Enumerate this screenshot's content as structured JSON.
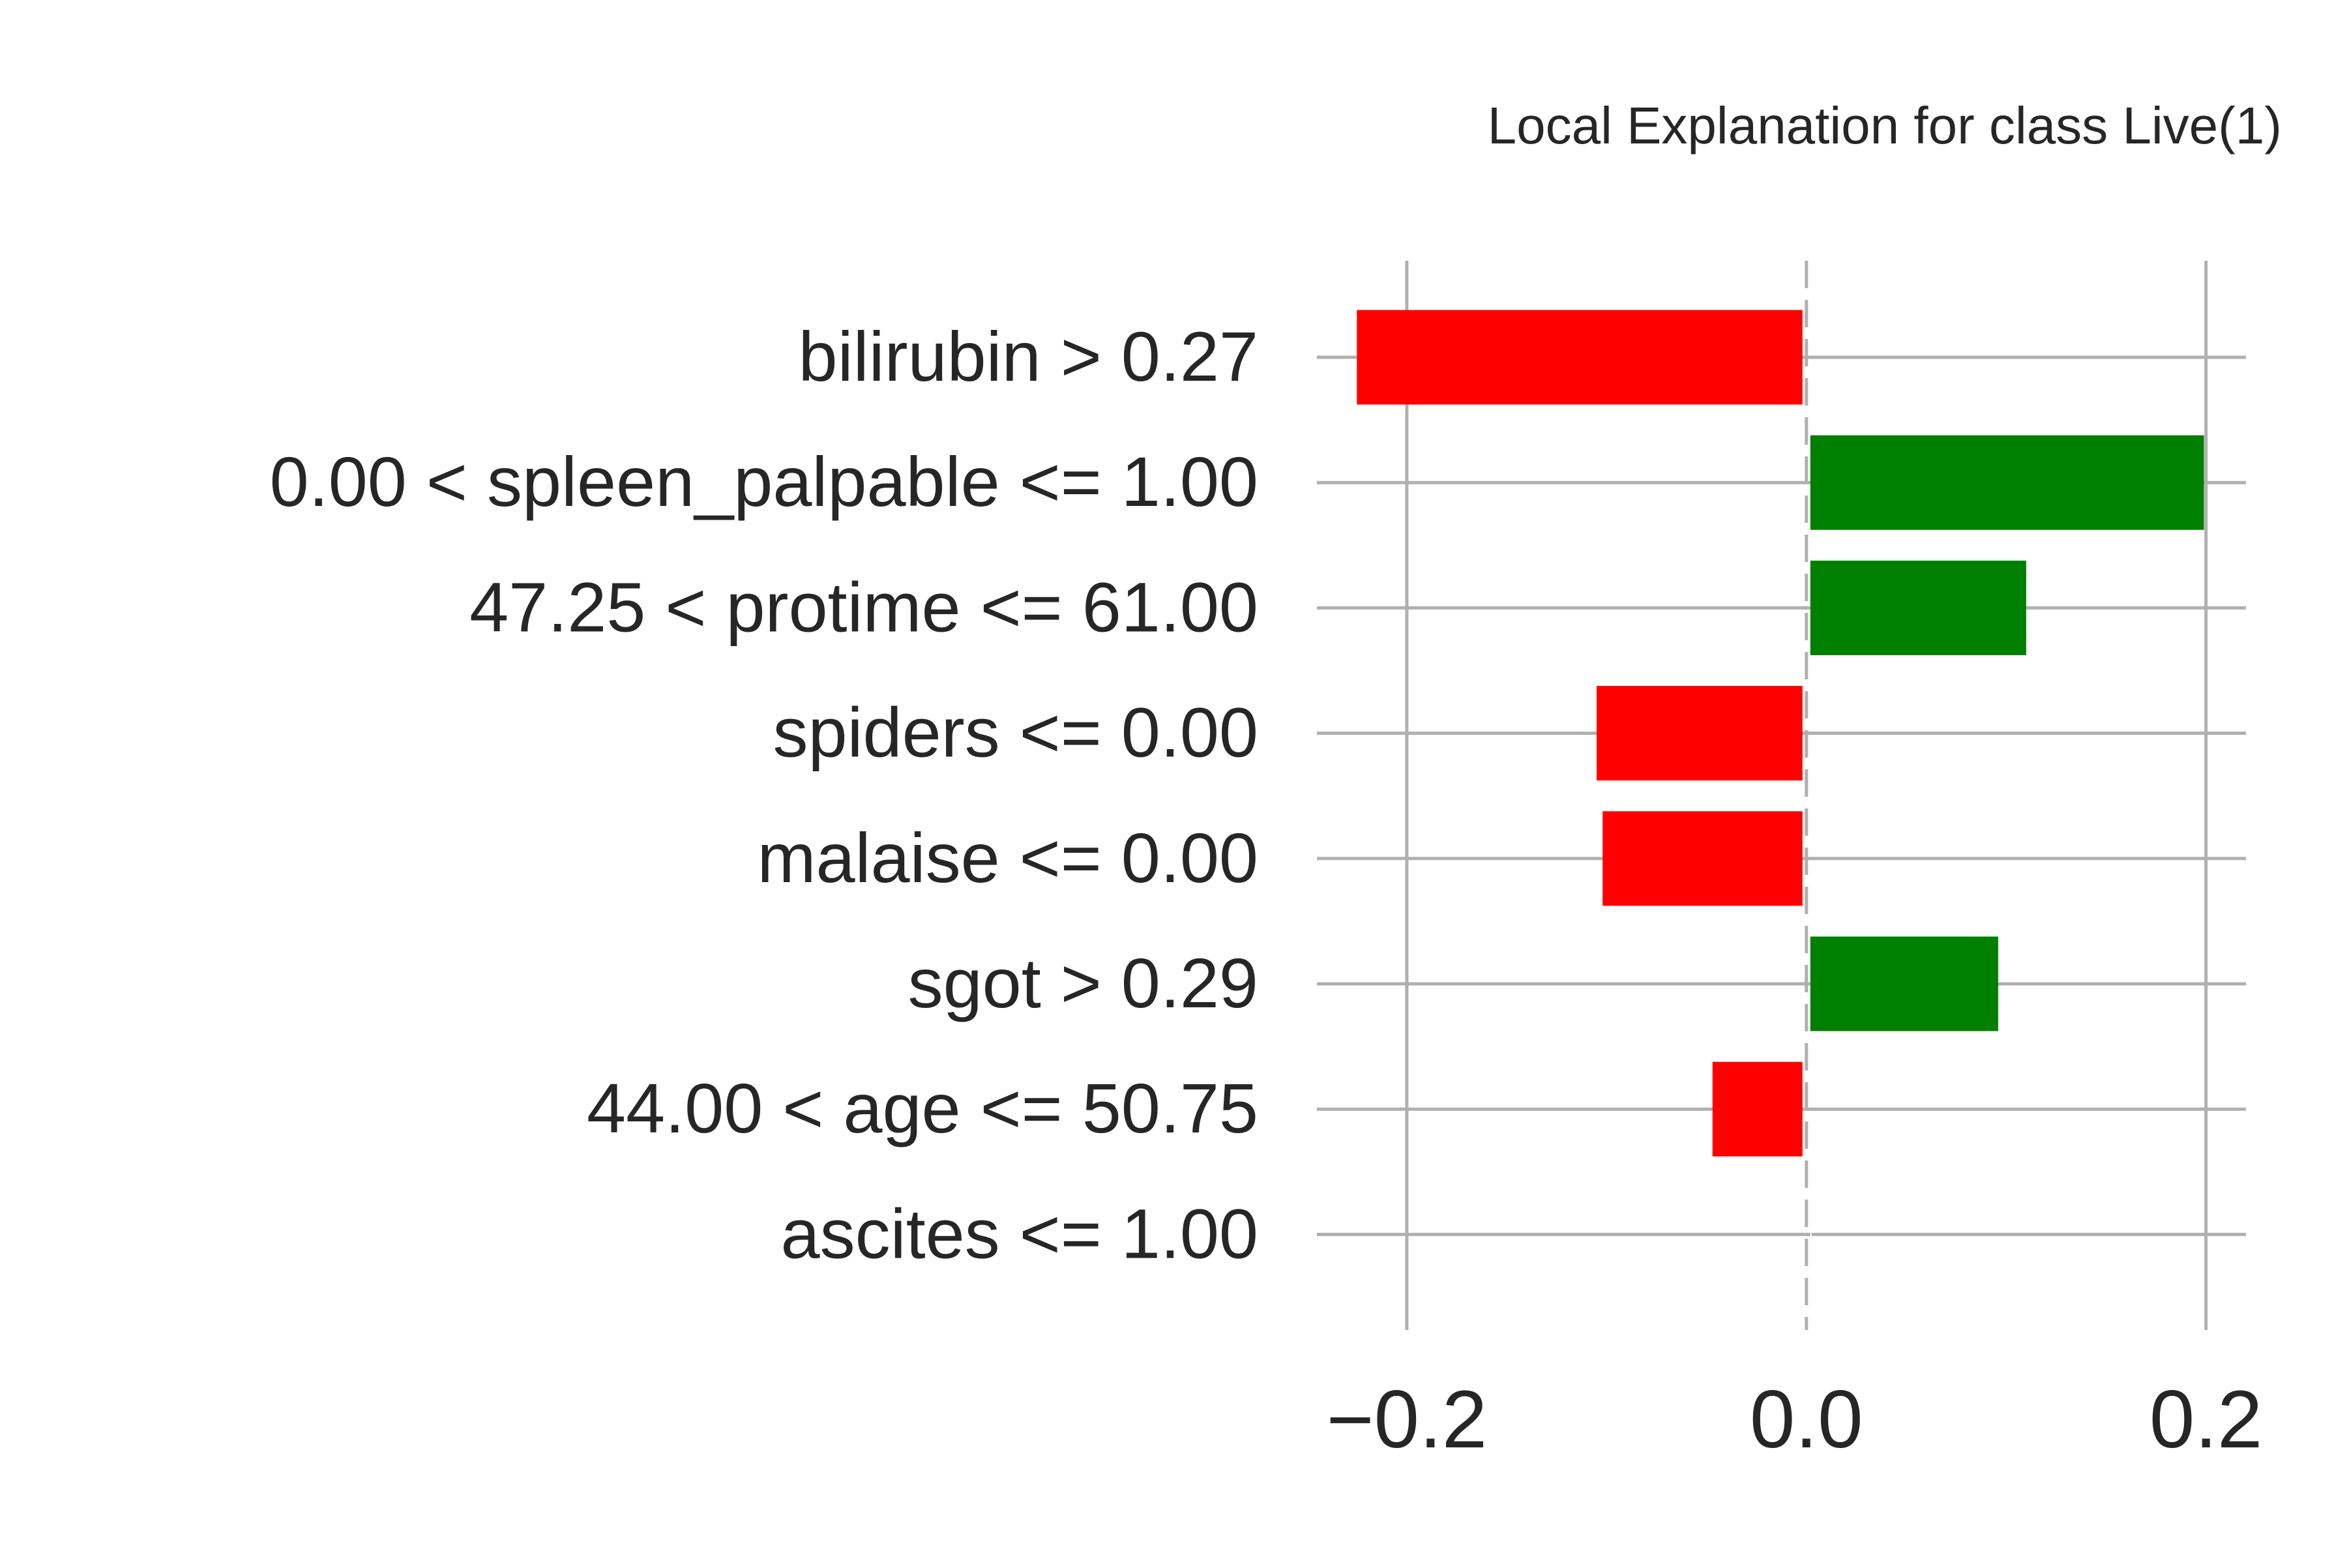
{
  "chart_data": {
    "type": "bar",
    "orientation": "horizontal",
    "title": "Local Explanation for class Live(1)",
    "xlabel": "",
    "ylabel": "",
    "categories": [
      "bilirubin > 0.27",
      "0.00 < spleen_palpable <= 1.00",
      "47.25 < protime <= 61.00",
      "spiders <= 0.00",
      "malaise <= 0.00",
      "sgot > 0.29",
      "44.00 < age <= 50.75",
      "ascites <= 1.00"
    ],
    "values": [
      -0.225,
      0.199,
      0.11,
      -0.105,
      -0.102,
      0.096,
      -0.047,
      0.0
    ],
    "xlim": [
      -0.245,
      0.22
    ],
    "xticks": [
      -0.2,
      0.0,
      0.2
    ],
    "xtick_labels": [
      "−0.2",
      "0.0",
      "0.2"
    ],
    "grid": true,
    "colors": {
      "positive": "#008000",
      "negative": "#ff0000",
      "grid": "#b0b0b0",
      "text": "#262626"
    }
  }
}
